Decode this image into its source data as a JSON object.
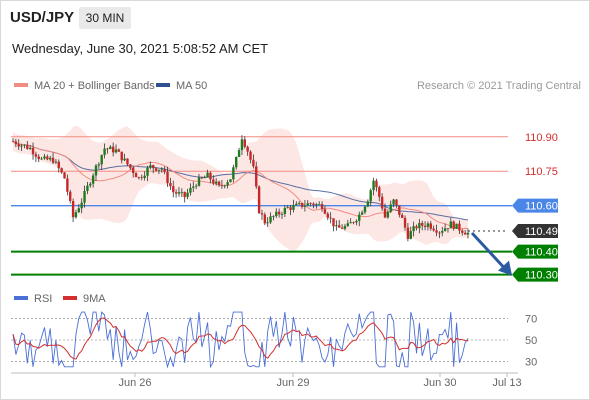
{
  "header": {
    "symbol": "USD/JPY",
    "timeframe": "30 MIN",
    "datetime": "Wednesday, June 30, 2021 5:08:52 AM CET",
    "credit": "Research © 2021 Trading Central"
  },
  "legend": {
    "bollinger": "MA 20 + Bollinger Bands",
    "ma50": "MA 50",
    "rsi": "RSI",
    "rsi_ma": "9MA"
  },
  "colors": {
    "bollinger": "#f28b82",
    "band_fill": "#fde3e1",
    "ma50": "#2f4f8f",
    "up": "#1e7a1e",
    "down": "#c62828",
    "support": "#008000",
    "resistance": "#f28b82",
    "pivot": "#4a86e8",
    "current": "#333333",
    "arrow": "#2c5aa0",
    "rsi": "#4a6fd6",
    "rsi_ma": "#d32f2f"
  },
  "chart_data": {
    "type": "candlestick",
    "title": "USD/JPY",
    "timeframe": "30 MIN",
    "ylim": [
      110.2635,
      111.06
    ],
    "x_ticks": [
      "Jun 26",
      "Jun 29",
      "Jun 30",
      "Jul 13"
    ],
    "levels": [
      {
        "value": 110.9,
        "label": "110.90",
        "kind": "resistance"
      },
      {
        "value": 110.75,
        "label": "110.75",
        "kind": "resistance"
      },
      {
        "value": 110.6,
        "label": "110.60",
        "kind": "pivot"
      },
      {
        "value": 110.49,
        "label": "110.49",
        "kind": "current"
      },
      {
        "value": 110.4,
        "label": "110.40",
        "kind": "support"
      },
      {
        "value": 110.3,
        "label": "110.30",
        "kind": "support"
      }
    ],
    "arrow": {
      "from": 110.49,
      "to": 110.3
    },
    "last_price": 110.49,
    "rsi": {
      "levels": [
        70,
        50,
        30
      ],
      "ylim": [
        22,
        78
      ]
    }
  }
}
